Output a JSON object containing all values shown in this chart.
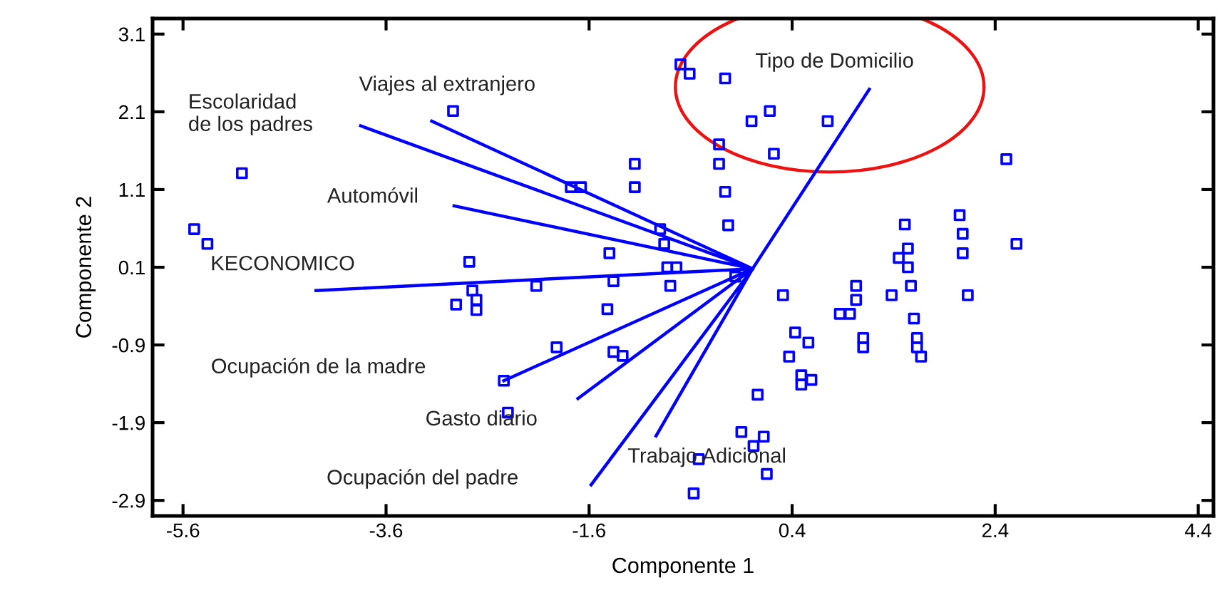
{
  "chart_data": {
    "type": "scatter",
    "xlabel": "Componente 1",
    "ylabel": "Componente 2",
    "xlim": [
      -5.9,
      4.55
    ],
    "ylim": [
      -3.1,
      3.3
    ],
    "xticks": [
      -5.6,
      -3.6,
      -1.6,
      0.4,
      2.4,
      4.4
    ],
    "yticks": [
      -2.9,
      -1.9,
      -0.9,
      0.1,
      1.1,
      2.1,
      3.1
    ],
    "grid": false,
    "series": [
      {
        "marker": "square",
        "color": "#0000ff",
        "x": [
          -2.94,
          -5.02,
          -5.49,
          -5.36,
          -2.78,
          -1.78,
          -1.68,
          -1.15,
          -1.15,
          -0.9,
          -0.86,
          -1.4,
          -0.83,
          -0.74,
          -1.36,
          -2.75,
          -2.12,
          -2.91,
          -2.71,
          -2.71,
          -1.42,
          -0.8,
          -1.92,
          -1.36,
          -1.27,
          -2.44,
          -2.4,
          -0.7,
          -0.61,
          -0.26,
          0.0,
          0.18,
          0.75,
          -0.32,
          0.22,
          -0.32,
          -0.26,
          -0.23,
          2.51,
          2.05,
          2.08,
          2.08,
          2.61,
          1.51,
          1.54,
          1.45,
          1.54,
          -0.16,
          0.31,
          1.03,
          1.03,
          1.38,
          1.57,
          2.13,
          0.87,
          0.97,
          1.6,
          1.63,
          1.63,
          1.67,
          1.1,
          1.1,
          0.43,
          0.56,
          0.37,
          0.49,
          0.49,
          0.59,
          0.06,
          -0.1,
          0.12,
          0.02,
          -0.52,
          0.15,
          -0.57
        ],
        "values": [
          2.11,
          1.31,
          0.59,
          0.4,
          0.17,
          1.13,
          1.13,
          1.43,
          1.13,
          0.59,
          0.4,
          0.28,
          0.1,
          0.1,
          -0.08,
          -0.2,
          -0.14,
          -0.38,
          -0.32,
          -0.45,
          -0.44,
          -0.14,
          -0.93,
          -0.99,
          -1.04,
          -1.36,
          -1.77,
          2.71,
          2.59,
          2.53,
          1.98,
          2.11,
          1.98,
          1.68,
          1.56,
          1.43,
          1.07,
          0.64,
          1.49,
          0.77,
          0.53,
          0.28,
          0.4,
          0.65,
          0.34,
          0.22,
          0.1,
          -0.02,
          -0.26,
          -0.14,
          -0.32,
          -0.26,
          -0.14,
          -0.26,
          -0.5,
          -0.5,
          -0.56,
          -0.81,
          -0.93,
          -1.05,
          -0.81,
          -0.93,
          -0.74,
          -0.87,
          -1.05,
          -1.29,
          -1.41,
          -1.35,
          -1.54,
          -2.02,
          -2.08,
          -2.2,
          -2.37,
          -2.56,
          -2.81
        ]
      },
      {
        "type": "line",
        "marker": "none",
        "color": "#0000ff",
        "x": [
          0.01,
          -3.85,
          null,
          0.01,
          -3.15,
          null,
          0.01,
          -2.93,
          null,
          0.01,
          -4.29,
          null,
          0.01,
          -2.44,
          null,
          0.01,
          -1.71,
          null,
          0.01,
          -1.58,
          null,
          0.01,
          -0.94,
          null,
          0.01,
          1.16
        ],
        "values": [
          0.08,
          1.92,
          null,
          0.08,
          1.98,
          null,
          0.08,
          0.89,
          null,
          0.08,
          -0.2,
          null,
          0.08,
          -1.36,
          null,
          0.08,
          -1.59,
          null,
          0.08,
          -2.7,
          null,
          0.08,
          -2.07,
          null,
          0.08,
          2.39
        ]
      }
    ],
    "annotations": [
      {
        "text": "Escolaridad\nde los padres",
        "x": -3.85,
        "y": 1.92
      },
      {
        "text": "Viajes al extranjero",
        "x": -3.15,
        "y": 1.98
      },
      {
        "text": "Automóvil",
        "x": -2.93,
        "y": 0.89
      },
      {
        "text": "KECONOMICO",
        "x": -4.29,
        "y": -0.2
      },
      "Ocupación de la madre",
      {
        "text": "Gasto diario",
        "x": -1.71,
        "y": -1.59
      },
      "Ocupación del padre",
      {
        "text": "Trabajo Adicional",
        "x": -0.94,
        "y": -2.07
      },
      {
        "text": "Tipo de Domicilio",
        "x": 1.16,
        "y": 2.39
      }
    ]
  }
}
